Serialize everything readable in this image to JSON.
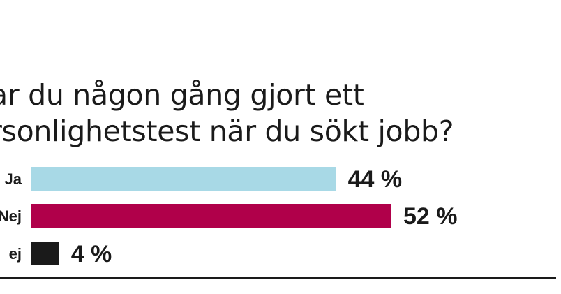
{
  "chart_data": {
    "type": "bar",
    "orientation": "horizontal",
    "title": [
      "ar du någon gång gjort ett",
      "rsonlighetstest när du sökt jobb?"
    ],
    "categories": [
      "Ja",
      "Nej",
      "ej"
    ],
    "values": [
      44,
      52,
      4
    ],
    "value_labels": [
      "44 %",
      "52 %",
      "4 %"
    ],
    "colors": [
      "#a8d9e6",
      "#b0004a",
      "#1a1a1a"
    ],
    "xlim": [
      0,
      52
    ],
    "grid": false,
    "legend": "none"
  }
}
